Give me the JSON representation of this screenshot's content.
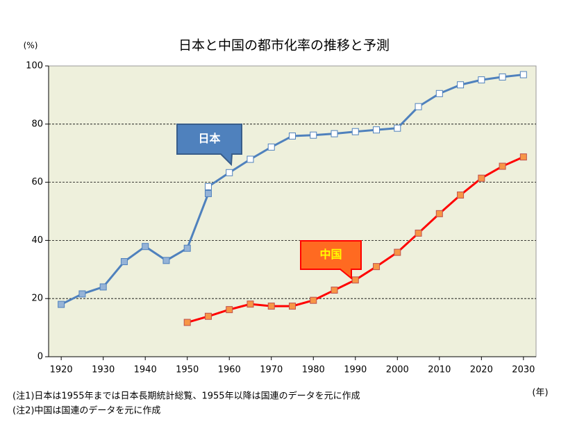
{
  "chart_data": {
    "type": "line",
    "title": "日本と中国の都市化率の推移と予測",
    "y_unit": "(%)",
    "x_unit": "(年)",
    "notes": [
      "(注1)日本は1955年までは日本長期統計総覧、1955年以降は国連のデータを元に作成",
      "(注2)中国は国連のデータを元に作成"
    ],
    "xlim": [
      1917,
      2033
    ],
    "xticks": [
      1920,
      1930,
      1940,
      1950,
      1960,
      1970,
      1980,
      1990,
      2000,
      2010,
      2020,
      2030
    ],
    "ylim": [
      0,
      100
    ],
    "yticks": [
      0,
      20,
      40,
      60,
      80,
      100
    ],
    "grid": true,
    "background": "#eef0dc",
    "series": [
      {
        "name": "日本",
        "color": "#4f81bd",
        "marker_color": "#95b3d7",
        "open_marker_from_index": 8,
        "x": [
          1920,
          1925,
          1930,
          1935,
          1940,
          1945,
          1950,
          1955,
          1955,
          1960,
          1965,
          1970,
          1975,
          1980,
          1985,
          1990,
          1995,
          2000,
          2005,
          2010,
          2015,
          2020,
          2025,
          2030
        ],
        "values": [
          18,
          21.6,
          24,
          32.7,
          37.9,
          33.1,
          37.3,
          56.1,
          58.5,
          63.3,
          67.9,
          72.1,
          75.9,
          76.2,
          76.7,
          77.4,
          78,
          78.6,
          86,
          90.5,
          93.5,
          95.2,
          96.2,
          97
        ]
      },
      {
        "name": "中国",
        "color": "#ff0000",
        "marker_color": "#f79646",
        "x": [
          1950,
          1955,
          1960,
          1965,
          1970,
          1975,
          1980,
          1985,
          1990,
          1995,
          2000,
          2005,
          2010,
          2015,
          2020,
          2025,
          2030
        ],
        "values": [
          11.8,
          13.9,
          16.2,
          18.1,
          17.4,
          17.4,
          19.4,
          22.9,
          26.4,
          31,
          35.9,
          42.5,
          49.2,
          55.6,
          61.4,
          65.5,
          68.7
        ]
      }
    ]
  }
}
